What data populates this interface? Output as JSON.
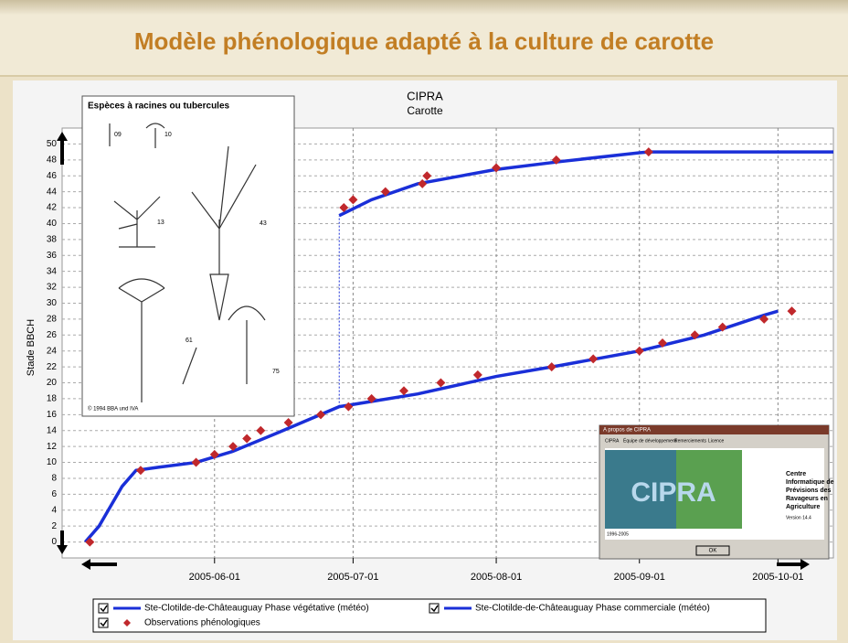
{
  "slide_title": "Modèle phénologique adapté à la culture de carotte",
  "chart_data": {
    "type": "line",
    "title": "CIPRA",
    "subtitle": "Carotte",
    "y_label": "Stade BBCH",
    "xlim": [
      "2005-04-29",
      "2005-10-13"
    ],
    "xticks": [
      "2005-06-01",
      "2005-07-01",
      "2005-08-01",
      "2005-09-01",
      "2005-10-01"
    ],
    "ylim": [
      -2,
      52
    ],
    "yticks": [
      0,
      2,
      4,
      6,
      8,
      10,
      12,
      14,
      16,
      18,
      20,
      22,
      24,
      26,
      28,
      30,
      32,
      34,
      36,
      38,
      40,
      42,
      44,
      46,
      48,
      50
    ],
    "grid": true,
    "series": [
      {
        "name": "Ste-Clotilde-de-Châteauguay Phase végétative (météo)",
        "color": "#1a2fd8",
        "style": "line",
        "x": [
          "2005-05-04",
          "2005-05-07",
          "2005-05-09",
          "2005-05-12",
          "2005-05-15",
          "2005-05-20",
          "2005-05-28",
          "2005-06-05",
          "2005-06-15",
          "2005-06-28",
          "2005-07-15",
          "2005-08-01",
          "2005-08-15",
          "2005-09-01",
          "2005-09-15",
          "2005-09-28",
          "2005-10-01"
        ],
        "values": [
          0,
          2,
          4,
          7,
          9,
          9.4,
          10,
          11.4,
          13.8,
          17,
          18.6,
          20.8,
          22.2,
          24,
          26,
          28.5,
          29
        ]
      },
      {
        "name": "Ste-Clotilde-de-Châteauguay Phase commerciale (météo)",
        "color": "#1a2fd8",
        "style": "line",
        "x": [
          "2005-06-28",
          "2005-07-05",
          "2005-07-15",
          "2005-08-01",
          "2005-08-15",
          "2005-09-01",
          "2005-09-03",
          "2005-10-13"
        ],
        "values": [
          41,
          43,
          45,
          46.8,
          47.8,
          48.9,
          49,
          49
        ]
      },
      {
        "name": "Observations phénologiques",
        "color": "#c0282c",
        "style": "diamond",
        "x": [
          "2005-05-05",
          "2005-05-16",
          "2005-05-28",
          "2005-06-01",
          "2005-06-05",
          "2005-06-08",
          "2005-06-11",
          "2005-06-17",
          "2005-06-24",
          "2005-06-30",
          "2005-07-05",
          "2005-07-12",
          "2005-07-20",
          "2005-07-28",
          "2005-08-13",
          "2005-08-22",
          "2005-09-01",
          "2005-09-06",
          "2005-09-13",
          "2005-09-19",
          "2005-09-28",
          "2005-10-04",
          "2005-06-29",
          "2005-07-01",
          "2005-07-08",
          "2005-07-16",
          "2005-07-17",
          "2005-08-01",
          "2005-08-14",
          "2005-09-03"
        ],
        "values": [
          0,
          9,
          10,
          11,
          12,
          13,
          14,
          15,
          16,
          17,
          18,
          19,
          20,
          21,
          22,
          23,
          24,
          25,
          26,
          27,
          28,
          29,
          42,
          43,
          44,
          45,
          46,
          47,
          48,
          49
        ]
      }
    ]
  },
  "illustration": {
    "title": "Espèces à racines ou tubercules",
    "labels": [
      "09",
      "10",
      "13",
      "43",
      "61",
      "75"
    ],
    "copyright": "© 1994 BBA und IVA"
  },
  "about_window": {
    "title": "A propos de CIPRA",
    "tabs": [
      "CIPRA",
      "Équipe de développement",
      "Remerciements",
      "Licence"
    ],
    "logo": "CIPRA",
    "org": [
      "Centre",
      "Informatique de",
      "Prévisions des",
      "Ravageurs en",
      "Agriculture"
    ],
    "version": "Version 14.4",
    "years": "1996-2005",
    "button": "OK"
  }
}
